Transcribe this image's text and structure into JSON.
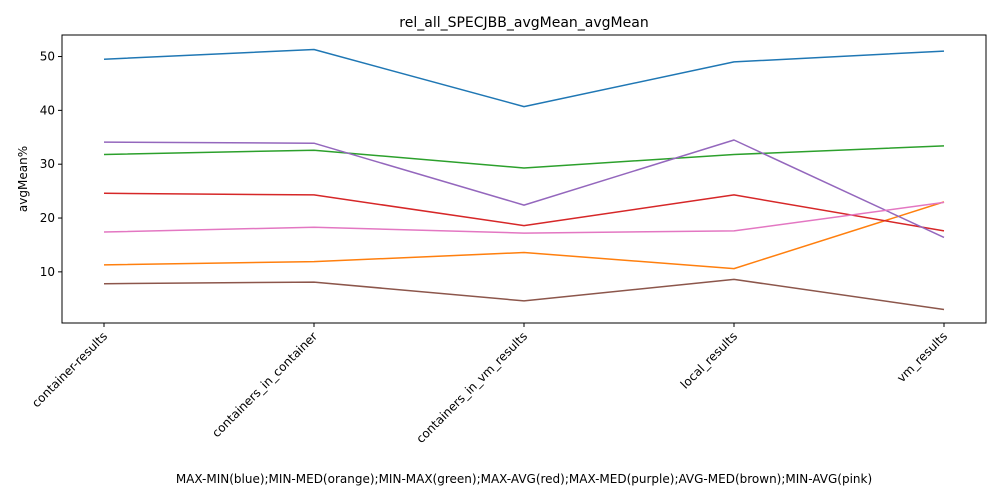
{
  "chart_data": {
    "type": "line",
    "title": "rel_all_SPECJBB_avgMean_avgMean",
    "xlabel": "MAX-MIN(blue);MIN-MED(orange);MIN-MAX(green);MAX-AVG(red);MAX-MED(purple);AVG-MED(brown);MIN-AVG(pink)",
    "ylabel": "avgMean%",
    "categories": [
      "container-results",
      "containers_in_container",
      "containers_in_vm_results",
      "local_results",
      "vm_results"
    ],
    "ylim": [
      0.5,
      54
    ],
    "yticks": [
      10,
      20,
      30,
      40,
      50
    ],
    "grid": false,
    "legend": "none",
    "series": [
      {
        "color": "#1f77b4",
        "values": [
          49.5,
          51.3,
          40.7,
          49.0,
          51.0
        ]
      },
      {
        "color": "#ff7f0e",
        "values": [
          11.3,
          11.9,
          13.6,
          10.6,
          23.0
        ]
      },
      {
        "color": "#2ca02c",
        "values": [
          31.8,
          32.6,
          29.3,
          31.8,
          33.4
        ]
      },
      {
        "color": "#d62728",
        "values": [
          24.6,
          24.3,
          18.6,
          24.3,
          17.6
        ]
      },
      {
        "color": "#9467bd",
        "values": [
          34.1,
          33.9,
          22.4,
          34.5,
          16.4
        ]
      },
      {
        "color": "#8c564b",
        "values": [
          7.8,
          8.1,
          4.6,
          8.6,
          3.0
        ]
      },
      {
        "color": "#e377c2",
        "values": [
          17.4,
          18.3,
          17.2,
          17.6,
          22.9
        ]
      }
    ]
  }
}
